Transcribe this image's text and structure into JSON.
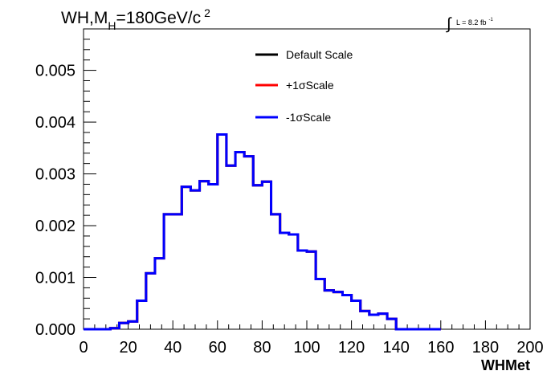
{
  "chart_data": {
    "type": "line",
    "title": {
      "main": "WH,M",
      "sub": "H",
      "rest": "=180GeV/c",
      "sup": "2"
    },
    "lumi": {
      "integral_sign": "∫",
      "text": "L = 8.2 fb",
      "sup": "-1"
    },
    "xlabel": "WHMet",
    "ylabel": "",
    "xlim": [
      0,
      200
    ],
    "ylim": [
      0,
      0.0058
    ],
    "x_ticks": [
      0,
      20,
      40,
      60,
      80,
      100,
      120,
      140,
      160,
      180,
      200
    ],
    "y_ticks": [
      "0.000",
      "0.001",
      "0.002",
      "0.003",
      "0.004",
      "0.005"
    ],
    "grid": false,
    "legend_position": "top-center",
    "bin_width": 4,
    "bin_edges_start": 0,
    "series": [
      {
        "name": "Default Scale",
        "color": "#000000",
        "values": [
          0.0,
          0.0,
          0.0,
          2e-05,
          0.00012,
          0.00015,
          0.00055,
          0.00108,
          0.00137,
          0.00222,
          0.00222,
          0.00275,
          0.00268,
          0.00286,
          0.0028,
          0.00376,
          0.00316,
          0.00342,
          0.00334,
          0.00278,
          0.00285,
          0.00222,
          0.00186,
          0.00183,
          0.00152,
          0.0015,
          0.00097,
          0.00075,
          0.00072,
          0.00066,
          0.00055,
          0.00035,
          0.00028,
          0.0003,
          0.0002,
          0.0,
          0.0,
          0.0,
          0.0,
          0.0
        ]
      },
      {
        "name": "+1σScale",
        "color": "#ff0000",
        "values": [
          0.0,
          0.0,
          0.0,
          2e-05,
          0.00012,
          0.00015,
          0.00055,
          0.00108,
          0.00137,
          0.00222,
          0.00222,
          0.00275,
          0.00268,
          0.00286,
          0.0028,
          0.00376,
          0.00316,
          0.00342,
          0.00334,
          0.00278,
          0.00285,
          0.00222,
          0.00186,
          0.00183,
          0.00152,
          0.0015,
          0.00097,
          0.00075,
          0.00072,
          0.00066,
          0.00055,
          0.00035,
          0.00028,
          0.0003,
          0.0002,
          0.0,
          0.0,
          0.0,
          0.0,
          0.0
        ]
      },
      {
        "name": "-1σScale",
        "color": "#0000ff",
        "values": [
          0.0,
          0.0,
          0.0,
          2e-05,
          0.00012,
          0.00015,
          0.00055,
          0.00108,
          0.00137,
          0.00222,
          0.00222,
          0.00275,
          0.00268,
          0.00286,
          0.0028,
          0.00376,
          0.00316,
          0.00342,
          0.00334,
          0.00278,
          0.00285,
          0.00222,
          0.00186,
          0.00183,
          0.00152,
          0.0015,
          0.00097,
          0.00075,
          0.00072,
          0.00066,
          0.00055,
          0.00035,
          0.00028,
          0.0003,
          0.0002,
          0.0,
          0.0,
          0.0,
          0.0,
          0.0
        ]
      }
    ]
  }
}
